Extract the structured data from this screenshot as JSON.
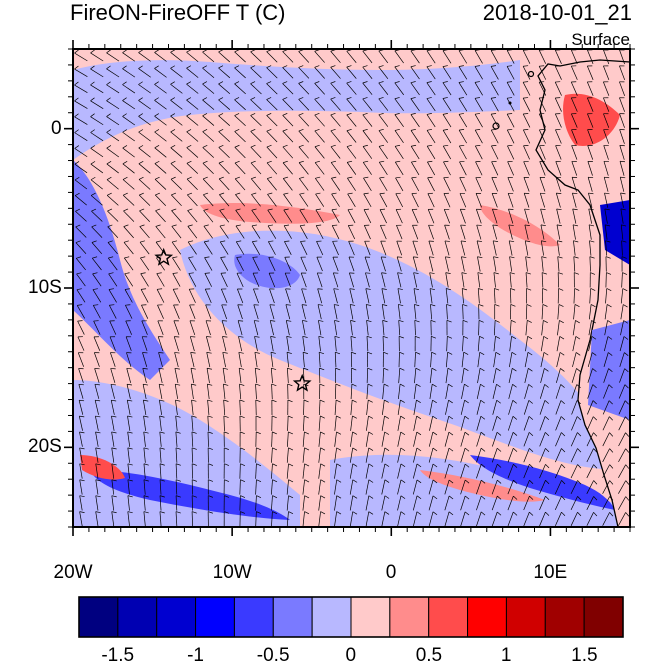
{
  "title": "FireON-FireOFF T (C)",
  "datetime": "2018-10-01_21",
  "level": "Surface",
  "map": {
    "lon_range": [
      -20,
      15
    ],
    "lat_range": [
      -25,
      5
    ],
    "x_ticks": [
      {
        "lon": -20,
        "label": "20W"
      },
      {
        "lon": -10,
        "label": "10W"
      },
      {
        "lon": 0,
        "label": "0"
      },
      {
        "lon": 10,
        "label": "10E"
      }
    ],
    "y_ticks": [
      {
        "lat": 0,
        "label": "0"
      },
      {
        "lat": -10,
        "label": "10S"
      },
      {
        "lat": -20,
        "label": "20S"
      }
    ],
    "stars": [
      {
        "name": "star-marker-north",
        "lon": -14.3,
        "lat": -8.1
      },
      {
        "name": "star-marker-south",
        "lon": -5.6,
        "lat": -16.0
      }
    ]
  },
  "colorbar": {
    "colors": [
      "#000080",
      "#0000b2",
      "#0000d0",
      "#0000ff",
      "#3a3aff",
      "#7a7aff",
      "#b8b8ff",
      "#ffcaca",
      "#ff8c8c",
      "#ff4c4c",
      "#ff0000",
      "#d00000",
      "#a00000",
      "#800000"
    ],
    "labels": [
      "-1.5",
      "-1",
      "-0.5",
      "0",
      "0.5",
      "1",
      "1.5"
    ]
  }
}
